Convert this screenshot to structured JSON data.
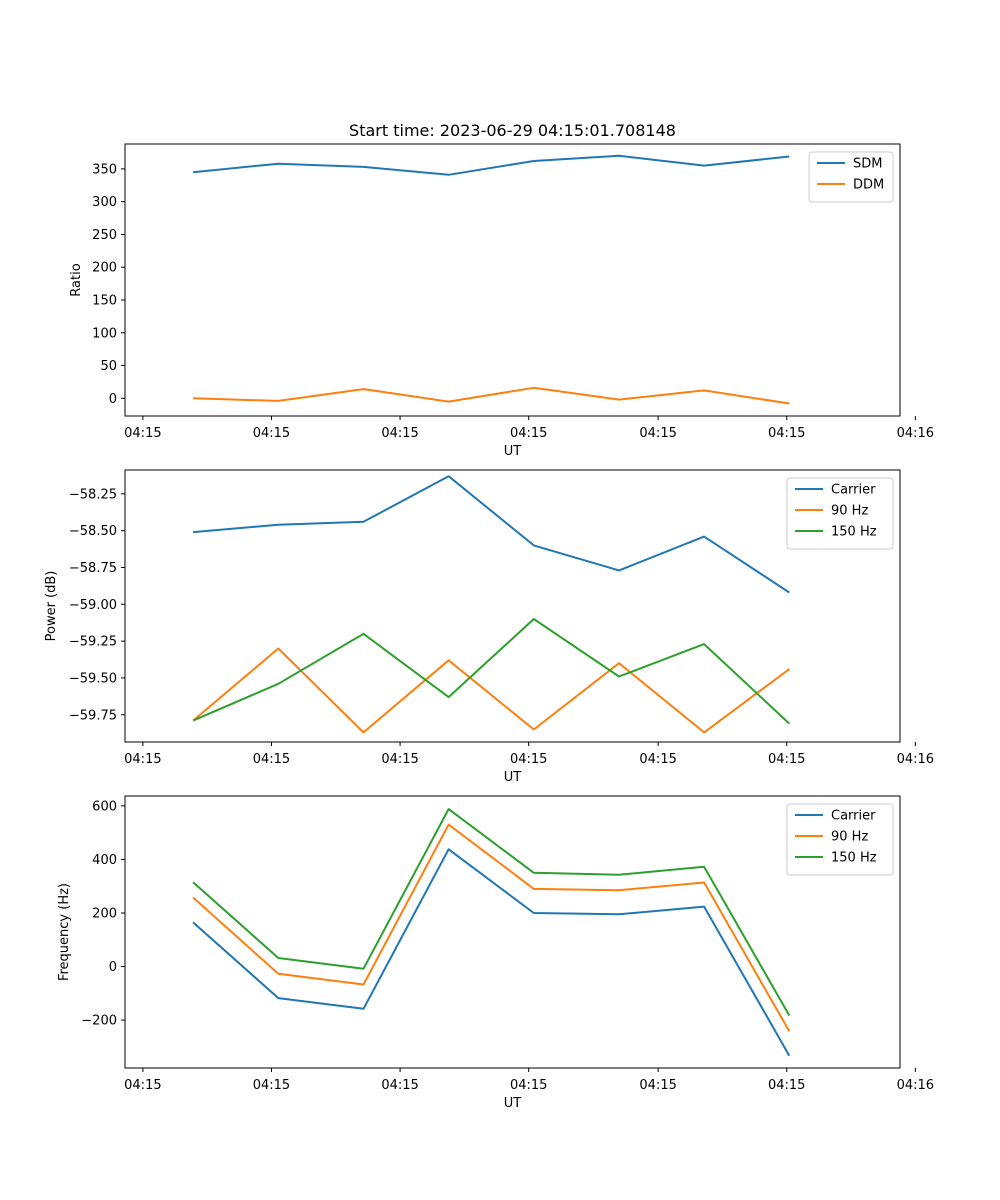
{
  "figure_title": "Start time: 2023-06-29 04:15:01.708148",
  "colors": {
    "blue": "#1f77b4",
    "orange": "#ff7f0e",
    "green": "#2ca02c"
  },
  "chart_data": [
    {
      "type": "line",
      "title": "Start time: 2023-06-29 04:15:01.708148",
      "xlabel": "UT",
      "ylabel": "Ratio",
      "x": [
        1,
        2,
        3,
        4,
        5,
        6,
        7,
        8
      ],
      "xlim": [
        0.2,
        9.3
      ],
      "xticks": [
        {
          "v": 0.41,
          "label": "04:15"
        },
        {
          "v": 1.92,
          "label": "04:15"
        },
        {
          "v": 3.43,
          "label": "04:15"
        },
        {
          "v": 4.94,
          "label": "04:15"
        },
        {
          "v": 6.46,
          "label": "04:15"
        },
        {
          "v": 7.97,
          "label": "04:15"
        },
        {
          "v": 9.48,
          "label": "04:16"
        }
      ],
      "ylim": [
        -27,
        388
      ],
      "yticks": [
        {
          "v": 0,
          "label": "0"
        },
        {
          "v": 50,
          "label": "50"
        },
        {
          "v": 100,
          "label": "100"
        },
        {
          "v": 150,
          "label": "150"
        },
        {
          "v": 200,
          "label": "200"
        },
        {
          "v": 250,
          "label": "250"
        },
        {
          "v": 300,
          "label": "300"
        },
        {
          "v": 350,
          "label": "350"
        }
      ],
      "legend_position": "upper-right",
      "series": [
        {
          "name": "SDM",
          "color": "#1f77b4",
          "values": [
            345,
            358,
            353,
            341,
            362,
            370,
            355,
            369
          ]
        },
        {
          "name": "DDM",
          "color": "#ff7f0e",
          "values": [
            0,
            -4,
            14,
            -5,
            16,
            -2,
            12,
            -8
          ]
        }
      ]
    },
    {
      "type": "line",
      "title": "",
      "xlabel": "UT",
      "ylabel": "Power (dB)",
      "x": [
        1,
        2,
        3,
        4,
        5,
        6,
        7,
        8
      ],
      "xlim": [
        0.2,
        9.3
      ],
      "xticks": [
        {
          "v": 0.41,
          "label": "04:15"
        },
        {
          "v": 1.92,
          "label": "04:15"
        },
        {
          "v": 3.43,
          "label": "04:15"
        },
        {
          "v": 4.94,
          "label": "04:15"
        },
        {
          "v": 6.46,
          "label": "04:15"
        },
        {
          "v": 7.97,
          "label": "04:15"
        },
        {
          "v": 9.48,
          "label": "04:16"
        }
      ],
      "ylim": [
        -59.935,
        -58.088
      ],
      "yticks": [
        {
          "v": -58.25,
          "label": "−58.25"
        },
        {
          "v": -58.5,
          "label": "−58.50"
        },
        {
          "v": -58.75,
          "label": "−58.75"
        },
        {
          "v": -59.0,
          "label": "−59.00"
        },
        {
          "v": -59.25,
          "label": "−59.25"
        },
        {
          "v": -59.5,
          "label": "−59.50"
        },
        {
          "v": -59.75,
          "label": "−59.75"
        }
      ],
      "legend_position": "upper-right",
      "series": [
        {
          "name": "Carrier",
          "color": "#1f77b4",
          "values": [
            -58.51,
            -58.46,
            -58.44,
            -58.13,
            -58.6,
            -58.77,
            -58.54,
            -58.92
          ]
        },
        {
          "name": "90 Hz",
          "color": "#ff7f0e",
          "values": [
            -59.79,
            -59.3,
            -59.87,
            -59.38,
            -59.85,
            -59.4,
            -59.87,
            -59.44
          ]
        },
        {
          "name": "150 Hz",
          "color": "#2ca02c",
          "values": [
            -59.79,
            -59.54,
            -59.2,
            -59.63,
            -59.1,
            -59.49,
            -59.27,
            -59.81
          ]
        }
      ]
    },
    {
      "type": "line",
      "title": "",
      "xlabel": "UT",
      "ylabel": "Frequency (Hz)",
      "x": [
        1,
        2,
        3,
        4,
        5,
        6,
        7,
        8
      ],
      "xlim": [
        0.2,
        9.3
      ],
      "xticks": [
        {
          "v": 0.41,
          "label": "04:15"
        },
        {
          "v": 1.92,
          "label": "04:15"
        },
        {
          "v": 3.43,
          "label": "04:15"
        },
        {
          "v": 4.94,
          "label": "04:15"
        },
        {
          "v": 6.46,
          "label": "04:15"
        },
        {
          "v": 7.97,
          "label": "04:15"
        },
        {
          "v": 9.48,
          "label": "04:16"
        }
      ],
      "ylim": [
        -379,
        637
      ],
      "yticks": [
        {
          "v": -200,
          "label": "−200"
        },
        {
          "v": 0,
          "label": "0"
        },
        {
          "v": 200,
          "label": "200"
        },
        {
          "v": 400,
          "label": "400"
        },
        {
          "v": 600,
          "label": "600"
        }
      ],
      "legend_position": "upper-right",
      "series": [
        {
          "name": "Carrier",
          "color": "#1f77b4",
          "values": [
            165,
            -118,
            -158,
            438,
            200,
            195,
            224,
            -333
          ]
        },
        {
          "name": "90 Hz",
          "color": "#ff7f0e",
          "values": [
            258,
            -27,
            -67,
            530,
            290,
            285,
            314,
            -242
          ]
        },
        {
          "name": "150 Hz",
          "color": "#2ca02c",
          "values": [
            315,
            32,
            -8,
            588,
            350,
            343,
            373,
            -183
          ]
        }
      ]
    }
  ]
}
